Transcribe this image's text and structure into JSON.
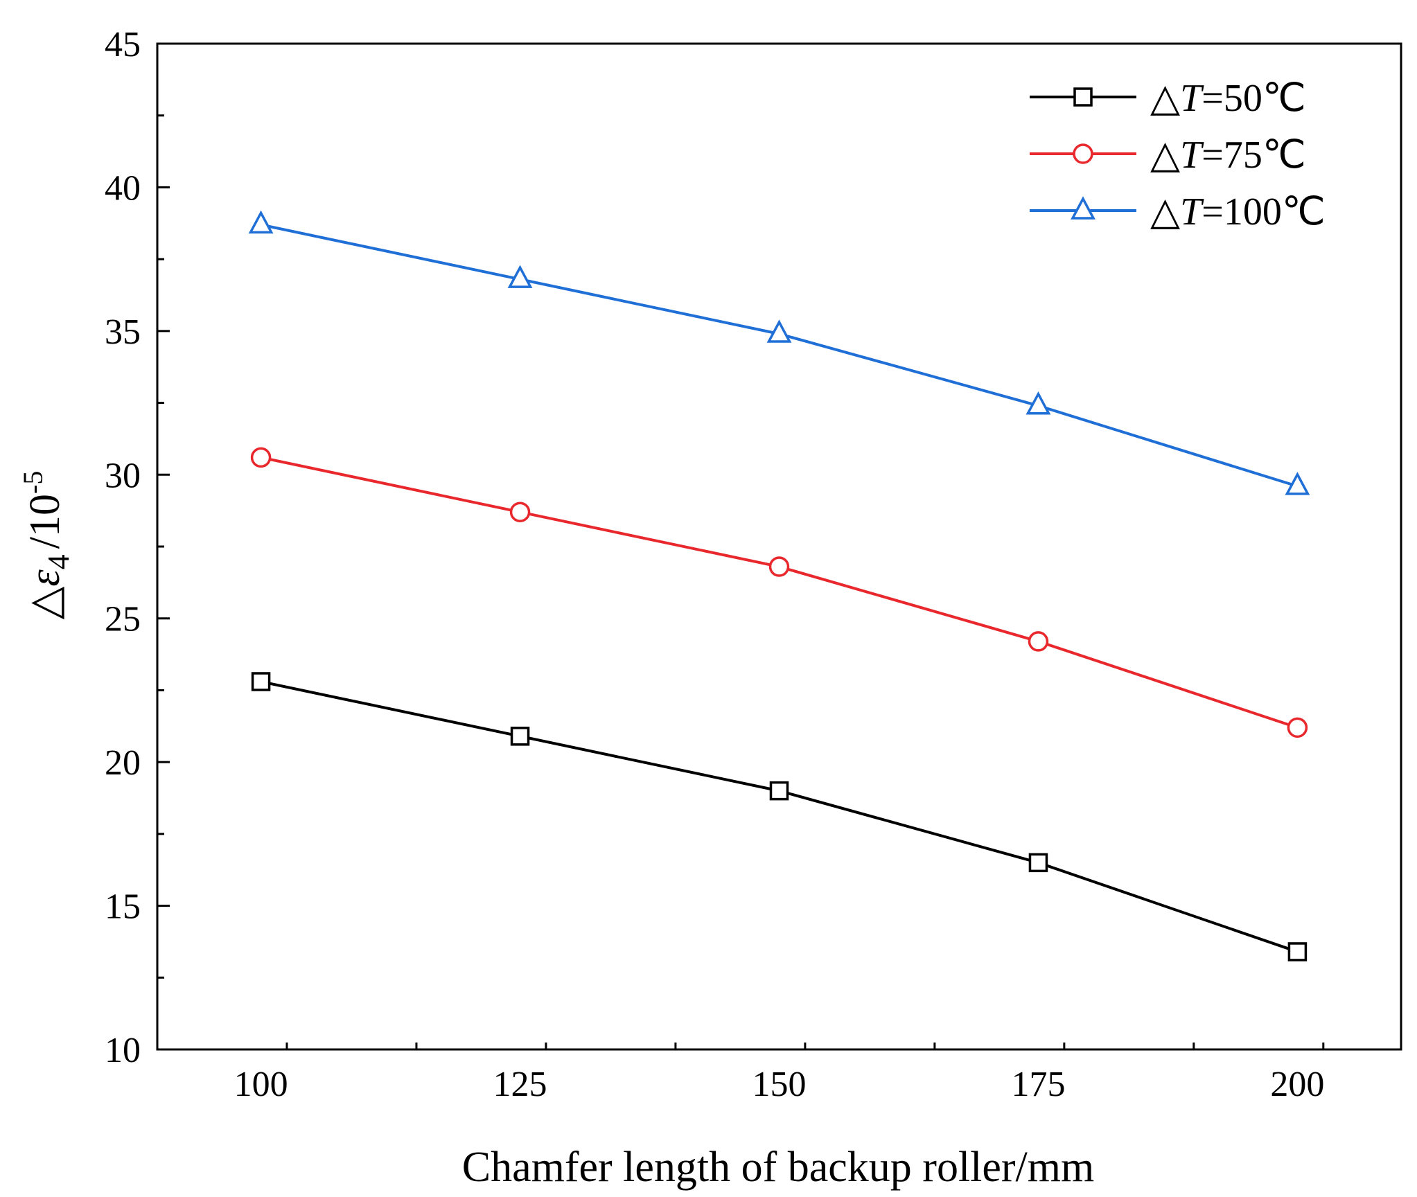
{
  "chart_data": {
    "type": "line",
    "title": "",
    "xlabel": "Chamfer length of backup roller/mm",
    "ylabel": {
      "prefix": "△",
      "symbol": "ε",
      "subscript": "4",
      "unit": "/10",
      "exponent": "-5"
    },
    "x": [
      100,
      125,
      150,
      175,
      200
    ],
    "xlim": [
      90,
      210
    ],
    "ylim": [
      10,
      45
    ],
    "xticks": [
      "100",
      "125",
      "150",
      "175",
      "200"
    ],
    "yticks": [
      "10",
      "15",
      "20",
      "25",
      "30",
      "35",
      "40",
      "45"
    ],
    "grid": false,
    "legend_position": "top-right",
    "series": [
      {
        "name": "△T=50℃",
        "legend_prefix": "△",
        "legend_var": "T",
        "legend_value": "=50℃",
        "color": "#000000",
        "marker": "square",
        "values": [
          22.8,
          20.9,
          19.0,
          16.5,
          13.4
        ]
      },
      {
        "name": "△T=75℃",
        "legend_prefix": "△",
        "legend_var": "T",
        "legend_value": "=75℃",
        "color": "#e8282c",
        "marker": "circle",
        "values": [
          30.6,
          28.7,
          26.8,
          24.2,
          21.2
        ]
      },
      {
        "name": "△T=100℃",
        "legend_prefix": "△",
        "legend_var": "T",
        "legend_value": "=100℃",
        "color": "#1f6fd6",
        "marker": "triangle",
        "values": [
          38.7,
          36.8,
          34.9,
          32.4,
          29.6
        ]
      }
    ]
  }
}
